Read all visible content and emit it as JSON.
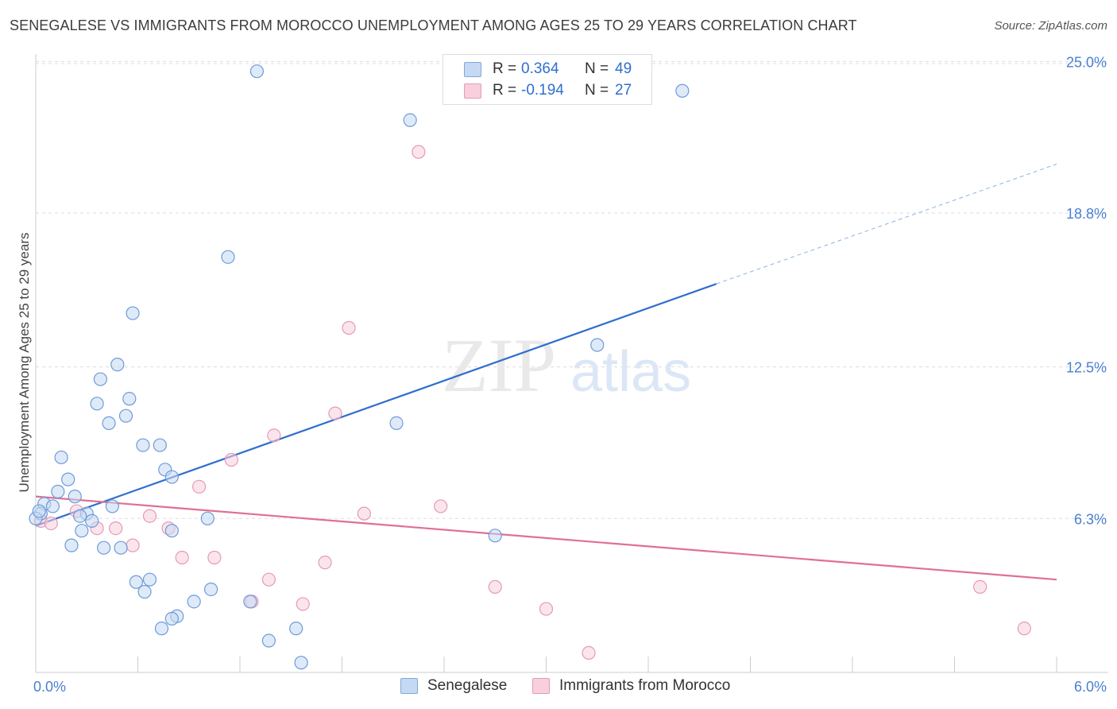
{
  "title": "SENEGALESE VS IMMIGRANTS FROM MOROCCO UNEMPLOYMENT AMONG AGES 25 TO 29 YEARS CORRELATION CHART",
  "source": "Source: ZipAtlas.com",
  "watermark": {
    "zip": "ZIP",
    "atlas": "atlas"
  },
  "colors": {
    "blue": "#2f6fce",
    "blue_fill": "#c5d9f2",
    "pink": "#e06f98",
    "pink_fill": "#f8cfdc"
  },
  "legend": {
    "rows": [
      {
        "r_label": "R =",
        "r_value": "0.364",
        "n_label": "N =",
        "n_value": "49"
      },
      {
        "r_label": "R =",
        "r_value": "-0.194",
        "n_label": "N =",
        "n_value": "27"
      }
    ]
  },
  "bottom_legend": {
    "series1": "Senegalese",
    "series2": "Immigrants from Morocco"
  },
  "chart_data": {
    "type": "scatter",
    "title": "SENEGALESE VS IMMIGRANTS FROM MOROCCO UNEMPLOYMENT AMONG AGES 25 TO 29 YEARS CORRELATION CHART",
    "xlabel": "",
    "ylabel": "Unemployment Among Ages 25 to 29 years",
    "xlim": [
      0,
      6
    ],
    "ylim": [
      0,
      25.5
    ],
    "x_tick_labels": [
      "0.0%",
      "6.0%"
    ],
    "y_ticks": [
      6.3,
      12.5,
      18.8,
      25.0
    ],
    "y_tick_labels": [
      "6.3%",
      "12.5%",
      "18.8%",
      "25.0%"
    ],
    "series": [
      {
        "name": "Senegalese",
        "r": 0.364,
        "n": 49,
        "trend": {
          "x0": 0.0,
          "y0": 6.0,
          "x1": 4.0,
          "y1": 15.9,
          "dash_to_x": 6.0,
          "dash_to_y": 20.8
        },
        "points": [
          [
            1.3,
            24.6
          ],
          [
            2.2,
            22.6
          ],
          [
            3.8,
            23.8
          ],
          [
            1.13,
            17.0
          ],
          [
            0.57,
            14.7
          ],
          [
            3.3,
            13.4
          ],
          [
            0.48,
            12.6
          ],
          [
            0.38,
            12.0
          ],
          [
            0.55,
            11.2
          ],
          [
            0.36,
            11.0
          ],
          [
            0.43,
            10.2
          ],
          [
            0.53,
            10.5
          ],
          [
            2.12,
            10.2
          ],
          [
            0.63,
            9.3
          ],
          [
            0.73,
            9.3
          ],
          [
            0.15,
            8.8
          ],
          [
            0.76,
            8.3
          ],
          [
            0.8,
            8.0
          ],
          [
            0.19,
            7.9
          ],
          [
            0.13,
            7.4
          ],
          [
            0.23,
            7.2
          ],
          [
            0.05,
            6.9
          ],
          [
            0.1,
            6.8
          ],
          [
            0.45,
            6.8
          ],
          [
            0.03,
            6.5
          ],
          [
            0.3,
            6.5
          ],
          [
            0.26,
            6.4
          ],
          [
            0.33,
            6.2
          ],
          [
            1.01,
            6.3
          ],
          [
            0.8,
            5.8
          ],
          [
            0.27,
            5.8
          ],
          [
            2.7,
            5.6
          ],
          [
            0.21,
            5.2
          ],
          [
            0.4,
            5.1
          ],
          [
            0.5,
            5.1
          ],
          [
            0.59,
            3.7
          ],
          [
            0.67,
            3.8
          ],
          [
            0.64,
            3.3
          ],
          [
            1.03,
            3.4
          ],
          [
            0.93,
            2.9
          ],
          [
            1.26,
            2.9
          ],
          [
            0.83,
            2.3
          ],
          [
            0.8,
            2.2
          ],
          [
            0.74,
            1.8
          ],
          [
            1.53,
            1.8
          ],
          [
            1.37,
            1.3
          ],
          [
            1.56,
            0.4
          ],
          [
            0.0,
            6.3
          ],
          [
            0.02,
            6.6
          ]
        ]
      },
      {
        "name": "Immigrants from Morocco",
        "r": -0.194,
        "n": 27,
        "trend": {
          "x0": 0.0,
          "y0": 7.2,
          "x1": 6.0,
          "y1": 3.8
        },
        "points": [
          [
            2.25,
            21.3
          ],
          [
            1.84,
            14.1
          ],
          [
            1.76,
            10.6
          ],
          [
            1.4,
            9.7
          ],
          [
            1.15,
            8.7
          ],
          [
            0.96,
            7.6
          ],
          [
            2.38,
            6.8
          ],
          [
            0.24,
            6.6
          ],
          [
            1.93,
            6.5
          ],
          [
            0.67,
            6.4
          ],
          [
            0.03,
            6.2
          ],
          [
            0.09,
            6.1
          ],
          [
            0.47,
            5.9
          ],
          [
            0.78,
            5.9
          ],
          [
            0.36,
            5.9
          ],
          [
            0.57,
            5.2
          ],
          [
            0.86,
            4.7
          ],
          [
            1.05,
            4.7
          ],
          [
            1.7,
            4.5
          ],
          [
            1.37,
            3.8
          ],
          [
            2.7,
            3.5
          ],
          [
            5.55,
            3.5
          ],
          [
            1.27,
            2.9
          ],
          [
            1.57,
            2.8
          ],
          [
            3.0,
            2.6
          ],
          [
            5.81,
            1.8
          ],
          [
            3.25,
            0.8
          ]
        ]
      }
    ]
  }
}
